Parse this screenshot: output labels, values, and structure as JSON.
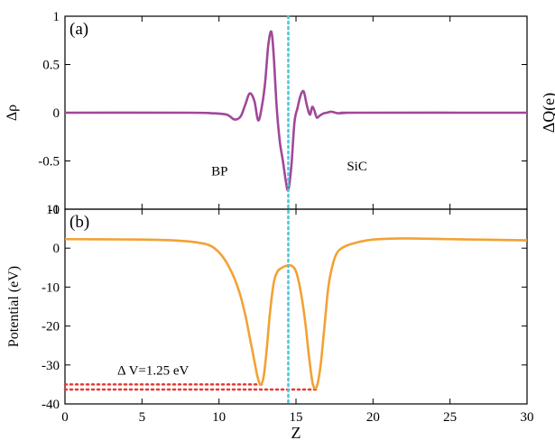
{
  "chart_data": [
    {
      "type": "line",
      "panel_label": "(a)",
      "ylabel": "Δρ",
      "right_label": "ΔQ(e)",
      "xlim": [
        0,
        30
      ],
      "ylim": [
        -1,
        1
      ],
      "yticks": [
        1,
        0.5,
        0,
        -0.5,
        -1
      ],
      "ytick_labels": [
        "1",
        "0.5",
        "0",
        "-0.5",
        "-1"
      ],
      "grid": false,
      "series": [
        {
          "color": "#a0489a",
          "x": [
            0,
            8,
            9.5,
            10.5,
            11.0,
            11.4,
            11.7,
            12.0,
            12.3,
            12.55,
            12.8,
            13.0,
            13.2,
            13.4,
            13.55,
            13.75,
            13.95,
            14.15,
            14.35,
            14.5,
            14.7,
            14.9,
            15.1,
            15.3,
            15.5,
            15.7,
            15.9,
            16.05,
            16.2,
            16.35,
            16.55,
            16.75,
            17.0,
            17.3,
            17.7,
            18.2,
            19.0,
            30
          ],
          "values": [
            0,
            0,
            -0.005,
            -0.02,
            -0.07,
            -0.04,
            0.08,
            0.2,
            0.12,
            -0.08,
            0.08,
            0.32,
            0.7,
            0.84,
            0.6,
            0.05,
            -0.3,
            -0.5,
            -0.72,
            -0.8,
            -0.55,
            -0.1,
            0.05,
            0.18,
            0.22,
            0.08,
            -0.02,
            0.06,
            0.02,
            -0.05,
            -0.03,
            -0.01,
            0.0,
            0.01,
            -0.005,
            -0.002,
            0,
            0
          ]
        }
      ],
      "annotations": [
        {
          "text": "BP",
          "x": 9.5,
          "y": -0.65
        },
        {
          "text": "SiC",
          "x": 18.3,
          "y": -0.6
        }
      ]
    },
    {
      "type": "line",
      "panel_label": "(b)",
      "xlabel": "Z",
      "ylabel": "Potential (eV)",
      "xlim": [
        0,
        30
      ],
      "ylim": [
        -40,
        10
      ],
      "xticks": [
        0,
        5,
        10,
        15,
        20,
        25,
        30
      ],
      "yticks": [
        10,
        0,
        -10,
        -20,
        -30,
        -40
      ],
      "ytick_labels": [
        "10",
        "0",
        "-10",
        "-20",
        "-30",
        "-40"
      ],
      "grid": false,
      "series": [
        {
          "color": "#f2a233",
          "x": [
            0,
            5,
            7,
            8.5,
            9.5,
            10.2,
            10.8,
            11.3,
            11.7,
            12.0,
            12.3,
            12.5,
            12.7,
            12.9,
            13.1,
            13.3,
            13.55,
            13.8,
            14.1,
            14.4,
            14.7,
            15.0,
            15.3,
            15.6,
            15.85,
            16.1,
            16.35,
            16.6,
            16.85,
            17.1,
            17.4,
            17.7,
            18.2,
            19,
            20,
            22,
            25,
            30
          ],
          "values": [
            2.3,
            2.2,
            2.0,
            1.5,
            0.5,
            -2,
            -6,
            -11,
            -17,
            -23,
            -29,
            -33,
            -35,
            -33,
            -26,
            -17,
            -9,
            -6,
            -5,
            -4.5,
            -4.5,
            -6,
            -11,
            -19,
            -28,
            -35,
            -35.5,
            -30,
            -20,
            -10,
            -4,
            -1,
            0.5,
            1.5,
            2.2,
            2.5,
            2.3,
            2.0
          ]
        }
      ],
      "reference_lines": [
        {
          "y": -35.0,
          "x_from": 0,
          "x_to": 12.8,
          "color": "#e53935",
          "style": "dotted"
        },
        {
          "y": -36.3,
          "x_from": 0,
          "x_to": 16.4,
          "color": "#e53935",
          "style": "dotted"
        }
      ],
      "annotations": [
        {
          "text": "Δ V=1.25 eV",
          "x": 3.4,
          "y": -32.5
        }
      ]
    }
  ],
  "interface": {
    "x": 14.5,
    "color": "#4fc6d8",
    "style": "dotted"
  }
}
